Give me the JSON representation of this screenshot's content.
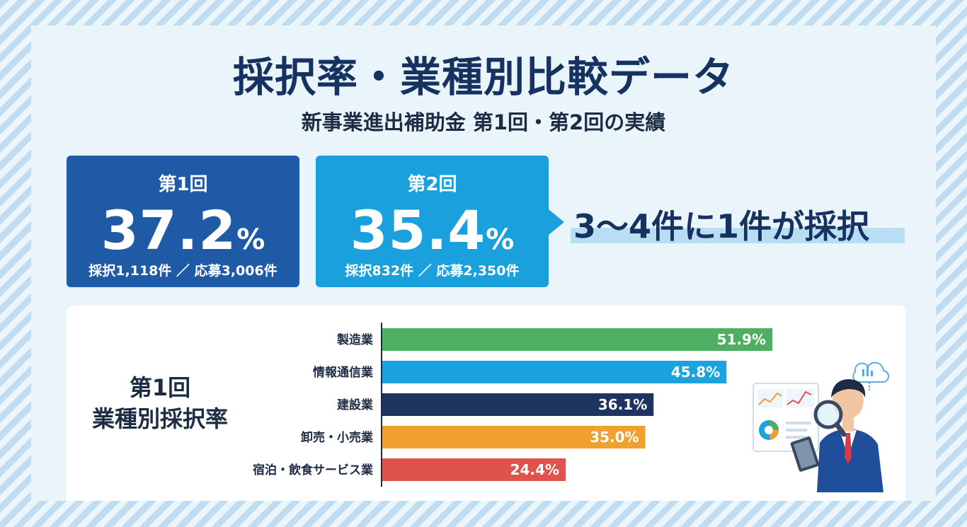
{
  "header": {
    "title": "採択率・業種別比較データ",
    "subtitle": "新事業進出補助金 第1回・第2回の実績"
  },
  "cards": [
    {
      "label": "第1回",
      "rate": "37.2",
      "unit": "%",
      "detail": "採択1,118件 ／ 応募3,006件",
      "color": "#1f5aa6"
    },
    {
      "label": "第2回",
      "rate": "35.4",
      "unit": "%",
      "detail": "採択832件 ／ 応募2,350件",
      "color": "#1aa0dc"
    }
  ],
  "callout": "3〜4件に1件が採択",
  "chart_section": {
    "label_line1": "第1回",
    "label_line2": "業種別採択率"
  },
  "chart_data": {
    "type": "bar",
    "orientation": "horizontal",
    "categories": [
      "製造業",
      "情報通信業",
      "建設業",
      "卸売・小売業",
      "宿泊・飲食サービス業"
    ],
    "values": [
      51.9,
      45.8,
      36.1,
      35.0,
      24.4
    ],
    "value_labels": [
      "51.9%",
      "45.8%",
      "36.1%",
      "35.0%",
      "24.4%"
    ],
    "colors": [
      "#4caf62",
      "#1ba3df",
      "#1e3360",
      "#f0a02c",
      "#e0534c"
    ],
    "title": "",
    "xlabel": "",
    "ylabel": "",
    "xlim": [
      0,
      60
    ],
    "grid": false,
    "legend": "none"
  },
  "illustration": {
    "icons": [
      "cloud-chart-icon",
      "dashboard-icon",
      "magnifier-icon",
      "tablet-icon",
      "businessman-icon"
    ]
  }
}
